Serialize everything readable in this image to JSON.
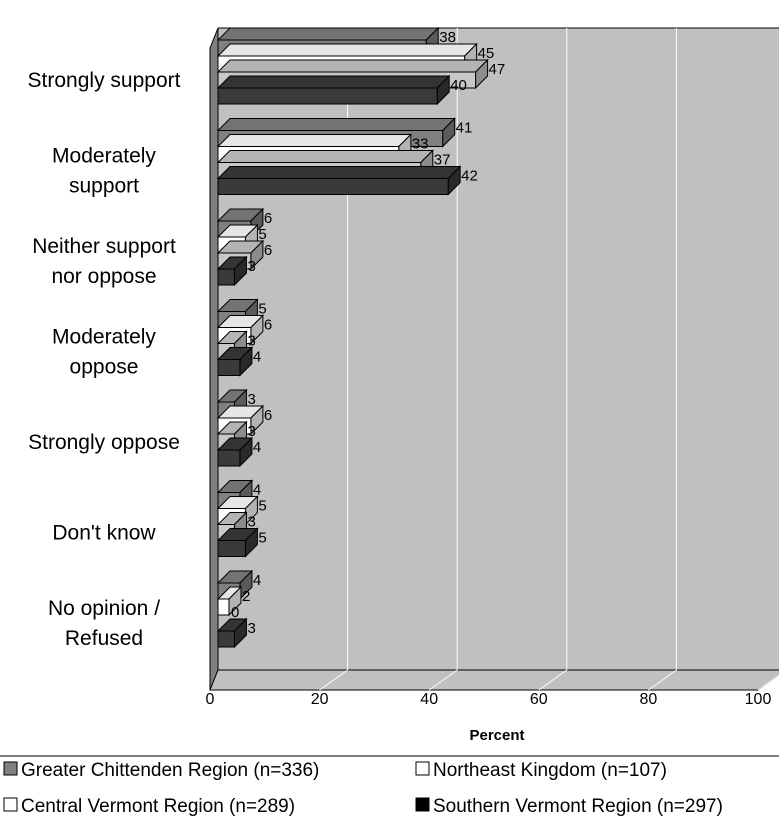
{
  "chart_data": {
    "type": "bar",
    "orientation": "horizontal",
    "style": "3d",
    "categories": [
      "Strongly support",
      "Moderately support",
      "Neither support nor oppose",
      "Moderately oppose",
      "Strongly oppose",
      "Don't know",
      "No opinion / Refused"
    ],
    "category_lines": [
      [
        "Strongly support"
      ],
      [
        "Moderately",
        "support"
      ],
      [
        "Neither support",
        "nor oppose"
      ],
      [
        "Moderately",
        "oppose"
      ],
      [
        "Strongly oppose"
      ],
      [
        "Don't know"
      ],
      [
        "No opinion /",
        "Refused"
      ]
    ],
    "series": [
      {
        "name": "Greater Chittenden Region (n=336)",
        "color": "#808080",
        "values": [
          38,
          41,
          6,
          5,
          3,
          4,
          4
        ]
      },
      {
        "name": "Northeast Kingdom (n=107)",
        "color": "#ffffff",
        "values": [
          45,
          33,
          5,
          6,
          6,
          5,
          2
        ]
      },
      {
        "name": "Central Vermont Region (n=289)",
        "color": "#c8c8c8",
        "values": [
          47,
          37,
          6,
          3,
          3,
          3,
          0
        ]
      },
      {
        "name": "Southern Vermont Region (n=297)",
        "color": "#3a3a3a",
        "values": [
          40,
          42,
          3,
          4,
          4,
          5,
          3
        ]
      }
    ],
    "xlabel": "Percent",
    "ylabel": "",
    "xlim": [
      0,
      100
    ],
    "xticks": [
      0,
      20,
      40,
      60,
      80,
      100
    ],
    "grid": true,
    "legend_position": "bottom"
  },
  "legend_colors": [
    "#808080",
    "#ffffff",
    "#ffffff",
    "#000000"
  ]
}
